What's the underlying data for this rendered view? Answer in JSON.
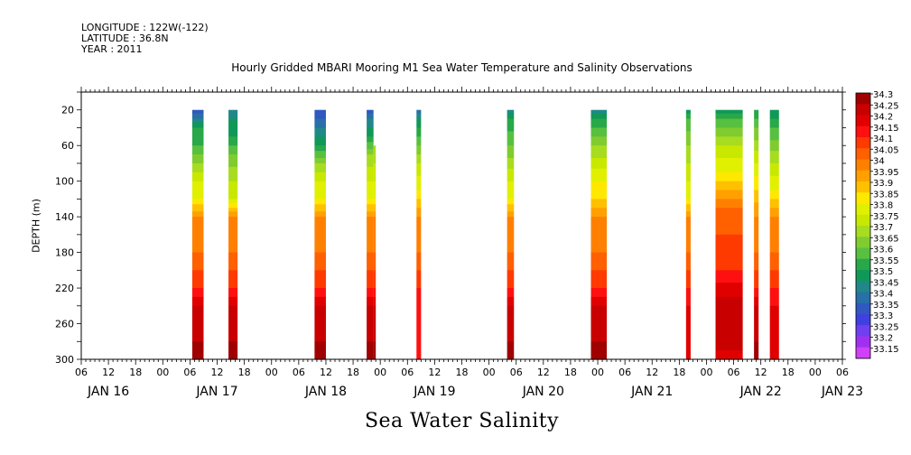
{
  "header": {
    "longitude": "LONGITUDE : 122W(-122)",
    "latitude": "LATITUDE : 36.8N",
    "year": "YEAR : 2011"
  },
  "chart_data": {
    "type": "heatmap",
    "title": "Hourly Gridded MBARI Mooring M1 Sea Water Temperature and Salinity Observations",
    "variable_label": "Sea Water Salinity",
    "ylabel": "DEPTH (m)",
    "y_axis": {
      "ylim": [
        300,
        0
      ],
      "inverted": true,
      "ticks": [
        20,
        60,
        100,
        140,
        180,
        220,
        260,
        300
      ],
      "minor_step": 20
    },
    "x_axis": {
      "start_hour": 6,
      "end_hour": 174,
      "hour_ticks": [
        "06",
        "12",
        "18",
        "00",
        "06",
        "12",
        "18",
        "00",
        "06",
        "12",
        "18",
        "00",
        "06",
        "12",
        "18",
        "00",
        "06",
        "12",
        "18",
        "00",
        "06",
        "12",
        "18",
        "00",
        "06",
        "12",
        "18",
        "00",
        "06"
      ],
      "day_labels": [
        {
          "label": "JAN 16",
          "hour": 12
        },
        {
          "label": "JAN 17",
          "hour": 36
        },
        {
          "label": "JAN 18",
          "hour": 60
        },
        {
          "label": "JAN 19",
          "hour": 84
        },
        {
          "label": "JAN 20",
          "hour": 108
        },
        {
          "label": "JAN 21",
          "hour": 132
        },
        {
          "label": "JAN 22",
          "hour": 156
        },
        {
          "label": "JAN 23",
          "hour": 174
        }
      ]
    },
    "colorbar": {
      "levels": [
        "34.3",
        "34.25",
        "34.2",
        "34.15",
        "34.1",
        "34.05",
        "34",
        "33.95",
        "33.9",
        "33.85",
        "33.8",
        "33.75",
        "33.7",
        "33.65",
        "33.6",
        "33.55",
        "33.5",
        "33.45",
        "33.4",
        "33.35",
        "33.3",
        "33.25",
        "33.2",
        "33.15"
      ],
      "colors": [
        "#a00000",
        "#c80000",
        "#e00000",
        "#ff1010",
        "#ff3a00",
        "#ff6000",
        "#ff8000",
        "#ffa000",
        "#ffc000",
        "#ffe800",
        "#e0f000",
        "#c8e800",
        "#a8dc20",
        "#80cc30",
        "#58c040",
        "#28a848",
        "#109858",
        "#208888",
        "#2870a8",
        "#3058c0",
        "#4040e0",
        "#7040f0",
        "#a030f0",
        "#d040f8"
      ]
    },
    "columns": [
      {
        "start": 30.5,
        "end": 33,
        "profile": [
          [
            20,
            33.35
          ],
          [
            30,
            33.45
          ],
          [
            40,
            33.55
          ],
          [
            60,
            33.6
          ],
          [
            80,
            33.7
          ],
          [
            100,
            33.8
          ],
          [
            120,
            33.85
          ],
          [
            140,
            34.0
          ],
          [
            180,
            34.05
          ],
          [
            200,
            34.1
          ],
          [
            220,
            34.15
          ],
          [
            240,
            34.25
          ],
          [
            280,
            34.3
          ],
          [
            300,
            34.3
          ]
        ]
      },
      {
        "start": 38.5,
        "end": 40.5,
        "profile": [
          [
            20,
            33.45
          ],
          [
            30,
            33.5
          ],
          [
            50,
            33.55
          ],
          [
            70,
            33.65
          ],
          [
            100,
            33.75
          ],
          [
            120,
            33.8
          ],
          [
            140,
            34.0
          ],
          [
            180,
            34.05
          ],
          [
            200,
            34.1
          ],
          [
            220,
            34.15
          ],
          [
            240,
            34.25
          ],
          [
            280,
            34.3
          ],
          [
            300,
            34.3
          ]
        ]
      },
      {
        "start": 57.5,
        "end": 60,
        "profile": [
          [
            20,
            33.35
          ],
          [
            30,
            33.4
          ],
          [
            40,
            33.45
          ],
          [
            60,
            33.55
          ],
          [
            80,
            33.7
          ],
          [
            100,
            33.8
          ],
          [
            120,
            33.85
          ],
          [
            140,
            34.0
          ],
          [
            180,
            34.05
          ],
          [
            200,
            34.1
          ],
          [
            220,
            34.15
          ],
          [
            240,
            34.25
          ],
          [
            280,
            34.3
          ],
          [
            300,
            34.3
          ]
        ]
      },
      {
        "start": 69,
        "end": 70.5,
        "profile": [
          [
            20,
            33.35
          ],
          [
            30,
            33.45
          ],
          [
            50,
            33.55
          ],
          [
            70,
            33.7
          ],
          [
            100,
            33.8
          ],
          [
            120,
            33.85
          ],
          [
            140,
            34.0
          ],
          [
            180,
            34.05
          ],
          [
            200,
            34.1
          ],
          [
            220,
            34.15
          ],
          [
            240,
            34.25
          ],
          [
            280,
            34.3
          ],
          [
            300,
            34.3
          ]
        ]
      },
      {
        "start": 70.5,
        "end": 71,
        "top": 60,
        "profile": [
          [
            60,
            33.7
          ],
          [
            100,
            33.8
          ],
          [
            120,
            33.85
          ],
          [
            140,
            34.0
          ],
          [
            180,
            34.05
          ],
          [
            200,
            34.1
          ],
          [
            220,
            34.15
          ],
          [
            240,
            34.25
          ],
          [
            280,
            34.3
          ],
          [
            300,
            34.3
          ]
        ]
      },
      {
        "start": 80,
        "end": 81,
        "profile": [
          [
            20,
            33.4
          ],
          [
            30,
            33.5
          ],
          [
            50,
            33.6
          ],
          [
            80,
            33.75
          ],
          [
            110,
            33.85
          ],
          [
            140,
            34.0
          ],
          [
            180,
            34.05
          ],
          [
            200,
            34.1
          ],
          [
            220,
            34.15
          ],
          [
            300,
            34.2
          ]
        ]
      },
      {
        "start": 100,
        "end": 101.5,
        "profile": [
          [
            20,
            33.45
          ],
          [
            30,
            33.55
          ],
          [
            60,
            33.65
          ],
          [
            100,
            33.8
          ],
          [
            120,
            33.85
          ],
          [
            140,
            34.0
          ],
          [
            180,
            34.05
          ],
          [
            200,
            34.1
          ],
          [
            220,
            34.15
          ],
          [
            240,
            34.25
          ],
          [
            280,
            34.3
          ],
          [
            300,
            34.3
          ]
        ]
      },
      {
        "start": 118.5,
        "end": 122,
        "profile": [
          [
            20,
            33.45
          ],
          [
            30,
            33.55
          ],
          [
            60,
            33.7
          ],
          [
            100,
            33.85
          ],
          [
            120,
            33.9
          ],
          [
            140,
            34.0
          ],
          [
            180,
            34.05
          ],
          [
            200,
            34.1
          ],
          [
            220,
            34.15
          ],
          [
            240,
            34.25
          ],
          [
            280,
            34.3
          ],
          [
            300,
            34.3
          ]
        ]
      },
      {
        "start": 139.5,
        "end": 140.5,
        "profile": [
          [
            20,
            33.5
          ],
          [
            30,
            33.6
          ],
          [
            60,
            33.7
          ],
          [
            100,
            33.8
          ],
          [
            120,
            33.85
          ],
          [
            140,
            34.0
          ],
          [
            180,
            34.05
          ],
          [
            200,
            34.1
          ],
          [
            220,
            34.15
          ],
          [
            240,
            34.2
          ],
          [
            300,
            34.2
          ]
        ]
      },
      {
        "start": 146,
        "end": 152,
        "profile": [
          [
            20,
            33.5
          ],
          [
            30,
            33.6
          ],
          [
            60,
            33.75
          ],
          [
            90,
            33.85
          ],
          [
            110,
            33.95
          ],
          [
            130,
            34.05
          ],
          [
            160,
            34.1
          ],
          [
            200,
            34.15
          ],
          [
            230,
            34.25
          ],
          [
            280,
            34.3
          ],
          [
            300,
            34.2
          ]
        ]
      },
      {
        "start": 154.5,
        "end": 155.5,
        "profile": [
          [
            20,
            33.55
          ],
          [
            40,
            33.65
          ],
          [
            80,
            33.8
          ],
          [
            110,
            33.9
          ],
          [
            140,
            34.0
          ],
          [
            180,
            34.05
          ],
          [
            200,
            34.1
          ],
          [
            220,
            34.15
          ],
          [
            240,
            34.25
          ],
          [
            280,
            34.3
          ],
          [
            300,
            34.3
          ]
        ]
      },
      {
        "start": 158,
        "end": 160,
        "profile": [
          [
            20,
            33.5
          ],
          [
            40,
            33.6
          ],
          [
            80,
            33.75
          ],
          [
            110,
            33.85
          ],
          [
            140,
            34.0
          ],
          [
            180,
            34.05
          ],
          [
            200,
            34.1
          ],
          [
            220,
            34.15
          ],
          [
            240,
            34.2
          ],
          [
            300,
            34.2
          ]
        ]
      }
    ]
  }
}
